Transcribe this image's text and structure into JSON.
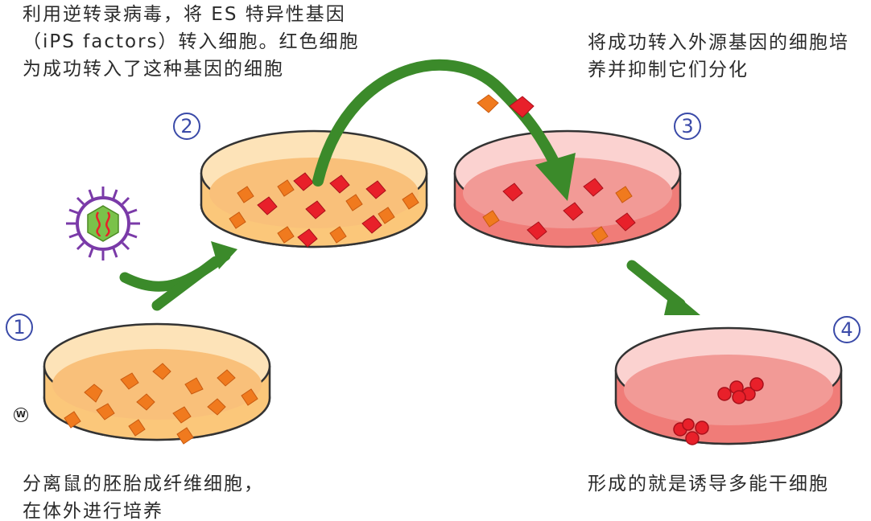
{
  "captions": {
    "top_left": [
      "利用逆转录病毒，将 ES 特异性基因",
      "（iPS  factors）转入细胞。红色细胞",
      "为成功转入了这种基因的细胞"
    ],
    "top_right": [
      "将成功转入外源基因的细胞培",
      "养并抑制它们分化"
    ],
    "bottom_left": [
      "分离鼠的胚胎成纤维细胞，",
      "在体外进行培养"
    ],
    "bottom_right": [
      "形成的就是诱导多能干细胞"
    ]
  },
  "steps": [
    "1",
    "2",
    "3",
    "4"
  ],
  "watermark": "W",
  "colors": {
    "orange_medium": "#fbc77a",
    "orange_cell": "#f07a1e",
    "pink_medium": "#f07c78",
    "red_cell": "#e8202a",
    "arrow_green": "#3b8a2a",
    "badge_blue": "#3a4aa8",
    "virus_purple": "#7a3aa8",
    "virus_green": "#7ac24a"
  },
  "icons": {
    "virus": "retrovirus-icon",
    "arrow": "curved-arrow-icon",
    "dish": "petri-dish-icon"
  }
}
